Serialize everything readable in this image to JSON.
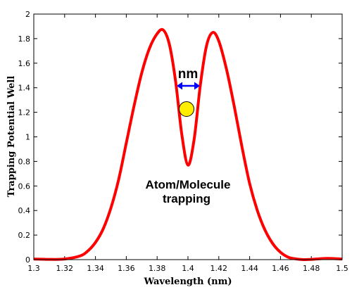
{
  "chart_data": {
    "type": "line",
    "xlabel": "Wavelength (nm)",
    "ylabel": "Trapping Potential Well",
    "xlim": [
      1.3,
      1.5
    ],
    "ylim": [
      0,
      2
    ],
    "xticks": [
      "1.3",
      "1.32",
      "1.34",
      "1.36",
      "1.38",
      "1.4",
      "1.42",
      "1.44",
      "1.46",
      "1.48",
      "1.5"
    ],
    "yticks": [
      "0",
      "0.2",
      "0.4",
      "0.6",
      "0.8",
      "1",
      "1.2",
      "1.4",
      "1.6",
      "1.8",
      "2"
    ],
    "series": [
      {
        "color": "#ff0000",
        "x": [
          1.3,
          1.31,
          1.32,
          1.33,
          1.335,
          1.34,
          1.345,
          1.35,
          1.355,
          1.36,
          1.365,
          1.37,
          1.375,
          1.38,
          1.384,
          1.388,
          1.392,
          1.396,
          1.4,
          1.404,
          1.408,
          1.412,
          1.416,
          1.42,
          1.425,
          1.43,
          1.435,
          1.44,
          1.445,
          1.45,
          1.455,
          1.46,
          1.465,
          1.47,
          1.475,
          1.48,
          1.49,
          1.5
        ],
        "y": [
          0.005,
          0.002,
          0.005,
          0.03,
          0.07,
          0.14,
          0.25,
          0.42,
          0.65,
          0.95,
          1.25,
          1.52,
          1.72,
          1.84,
          1.87,
          1.75,
          1.45,
          1.02,
          0.77,
          0.98,
          1.42,
          1.74,
          1.85,
          1.78,
          1.55,
          1.25,
          0.92,
          0.62,
          0.4,
          0.24,
          0.13,
          0.06,
          0.02,
          0.006,
          0.0,
          0.002,
          0.01,
          0.005
        ]
      }
    ],
    "annotations": {
      "nm_label": "nm",
      "trapping_line1": "Atom/Molecule",
      "trapping_line2": "trapping"
    },
    "marker_color": "#ffee00",
    "arrow_color": "#0000ff",
    "grid": false
  }
}
